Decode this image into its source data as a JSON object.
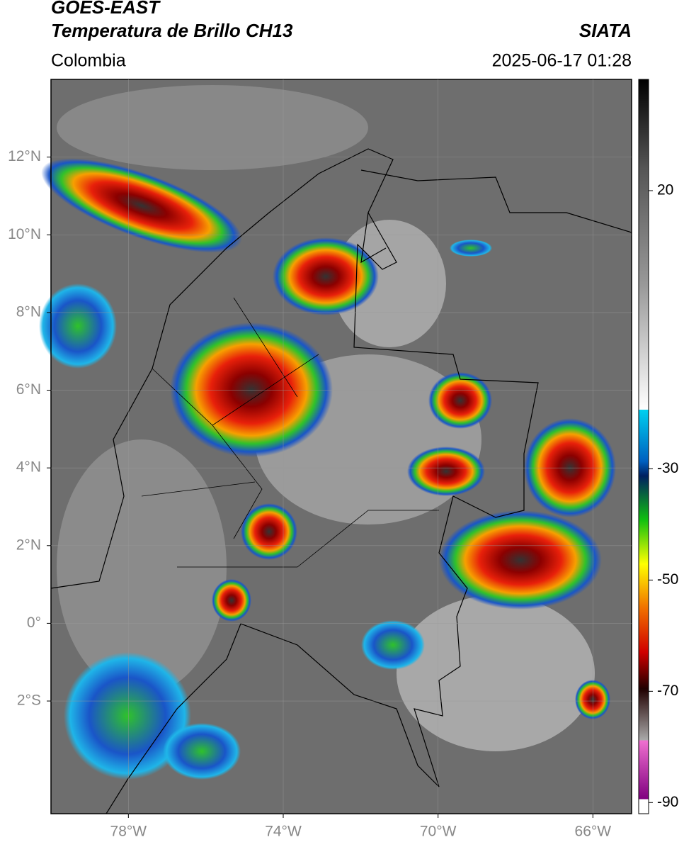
{
  "header": {
    "title_line1": "GOES-EAST",
    "title_line2": "Temperatura de Brillo CH13",
    "source": "SIATA",
    "region": "Colombia",
    "timestamp": "2025-06-17 01:28"
  },
  "map": {
    "lon_range": [
      -80,
      -65
    ],
    "lat_range": [
      -4.9,
      14
    ],
    "lon_ticks": [
      {
        "value": -78,
        "label": "78°W"
      },
      {
        "value": -74,
        "label": "74°W"
      },
      {
        "value": -70,
        "label": "70°W"
      },
      {
        "value": -66,
        "label": "66°W"
      }
    ],
    "lat_ticks": [
      {
        "value": 12,
        "label": "12°N"
      },
      {
        "value": 10,
        "label": "10°N"
      },
      {
        "value": 8,
        "label": "8°N"
      },
      {
        "value": 6,
        "label": "6°N"
      },
      {
        "value": 4,
        "label": "4°N"
      },
      {
        "value": 2,
        "label": "2°N"
      },
      {
        "value": 0,
        "label": "0°"
      },
      {
        "value": -2,
        "label": "2°S"
      }
    ]
  },
  "colorbar": {
    "range": [
      40,
      -92
    ],
    "ticks": [
      20,
      -30,
      -50,
      -70,
      -90
    ]
  }
}
